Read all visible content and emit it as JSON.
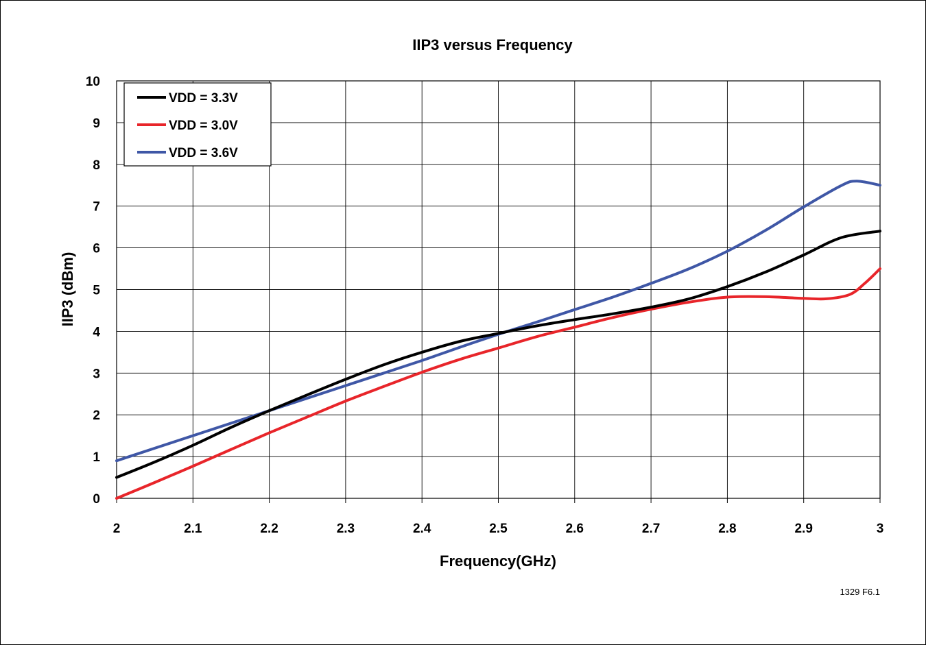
{
  "chart_data": {
    "type": "line",
    "title": "IIP3 versus Frequency",
    "xlabel": "Frequency(GHz)",
    "ylabel": "IIP3 (dBm)",
    "xlim": [
      2,
      3
    ],
    "ylim": [
      0,
      10
    ],
    "x_ticks": [
      "2",
      "2.1",
      "2.2",
      "2.3",
      "2.4",
      "2.5",
      "2.6",
      "2.7",
      "2.8",
      "2.9",
      "3"
    ],
    "y_ticks": [
      "0",
      "1",
      "2",
      "3",
      "4",
      "5",
      "6",
      "7",
      "8",
      "9",
      "10"
    ],
    "grid": true,
    "legend_position": "top-left",
    "series": [
      {
        "name": "VDD = 3.3V",
        "color": "#000000",
        "x": [
          2.0,
          2.05,
          2.1,
          2.15,
          2.2,
          2.25,
          2.3,
          2.35,
          2.4,
          2.45,
          2.5,
          2.55,
          2.6,
          2.65,
          2.7,
          2.75,
          2.8,
          2.85,
          2.9,
          2.95,
          3.0
        ],
        "y": [
          0.5,
          0.87,
          1.27,
          1.7,
          2.1,
          2.48,
          2.85,
          3.2,
          3.5,
          3.76,
          3.95,
          4.13,
          4.28,
          4.42,
          4.58,
          4.78,
          5.07,
          5.42,
          5.83,
          6.25,
          6.4
        ]
      },
      {
        "name": "VDD = 3.0V",
        "color": "#e8252a",
        "x": [
          2.0,
          2.05,
          2.1,
          2.15,
          2.2,
          2.25,
          2.3,
          2.35,
          2.4,
          2.45,
          2.5,
          2.55,
          2.6,
          2.65,
          2.7,
          2.75,
          2.8,
          2.85,
          2.9,
          2.93,
          2.96,
          2.98,
          3.0
        ],
        "y": [
          0.0,
          0.38,
          0.77,
          1.17,
          1.57,
          1.95,
          2.33,
          2.68,
          3.02,
          3.33,
          3.6,
          3.87,
          4.1,
          4.33,
          4.53,
          4.7,
          4.82,
          4.83,
          4.79,
          4.78,
          4.88,
          5.15,
          5.5
        ]
      },
      {
        "name": "VDD = 3.6V",
        "color": "#3f57a6",
        "x": [
          2.0,
          2.05,
          2.1,
          2.15,
          2.2,
          2.25,
          2.3,
          2.35,
          2.4,
          2.45,
          2.5,
          2.55,
          2.6,
          2.65,
          2.7,
          2.75,
          2.8,
          2.85,
          2.9,
          2.95,
          2.97,
          3.0
        ],
        "y": [
          0.9,
          1.2,
          1.5,
          1.8,
          2.1,
          2.4,
          2.7,
          3.0,
          3.3,
          3.62,
          3.93,
          4.22,
          4.52,
          4.82,
          5.15,
          5.5,
          5.92,
          6.42,
          6.98,
          7.5,
          7.6,
          7.5
        ]
      }
    ],
    "annotation": "1329 F6.1"
  }
}
